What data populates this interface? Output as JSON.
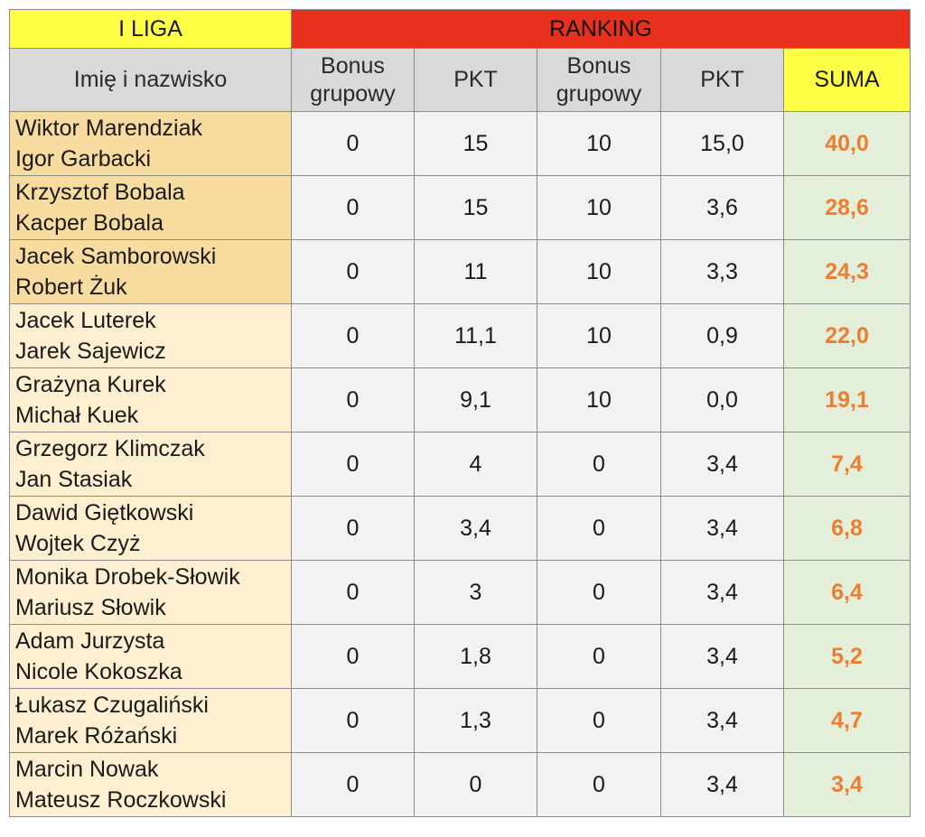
{
  "headers": {
    "league": "I LIGA",
    "ranking": "RANKING",
    "name_col": "Imię i nazwisko",
    "bonus_1_line1": "Bonus",
    "bonus_1_line2": "grupowy",
    "pkt_1": "PKT",
    "bonus_2_line1": "Bonus",
    "bonus_2_line2": "grupowy",
    "pkt_2": "PKT",
    "suma": "SUMA"
  },
  "colors": {
    "league_header": "#ffff47",
    "ranking_header": "#e8301f",
    "column_header": "#d9d9d9",
    "top3_name_bg": "#f8dc9f",
    "name_bg": "#fdefd0",
    "sum_bg": "#e4efda",
    "sum_text": "#ed7d31"
  },
  "rows": [
    {
      "player1": "Wiktor Marendziak",
      "player2": "Igor Garbacki",
      "bonus1": "0",
      "pkt1": "15",
      "bonus2": "10",
      "pkt2": "15,0",
      "suma": "40,0"
    },
    {
      "player1": "Krzysztof Bobala",
      "player2": "Kacper Bobala",
      "bonus1": "0",
      "pkt1": "15",
      "bonus2": "10",
      "pkt2": "3,6",
      "suma": "28,6"
    },
    {
      "player1": "Jacek Samborowski",
      "player2": "Robert Żuk",
      "bonus1": "0",
      "pkt1": "11",
      "bonus2": "10",
      "pkt2": "3,3",
      "suma": "24,3"
    },
    {
      "player1": "Jacek Luterek",
      "player2": "Jarek Sajewicz",
      "bonus1": "0",
      "pkt1": "11,1",
      "bonus2": "10",
      "pkt2": "0,9",
      "suma": "22,0"
    },
    {
      "player1": "Grażyna Kurek",
      "player2": "Michał Kuek",
      "bonus1": "0",
      "pkt1": "9,1",
      "bonus2": "10",
      "pkt2": "0,0",
      "suma": "19,1"
    },
    {
      "player1": "Grzegorz Klimczak",
      "player2": "Jan Stasiak",
      "bonus1": "0",
      "pkt1": "4",
      "bonus2": "0",
      "pkt2": "3,4",
      "suma": "7,4"
    },
    {
      "player1": "Dawid Giętkowski",
      "player2": "Wojtek Czyż",
      "bonus1": "0",
      "pkt1": "3,4",
      "bonus2": "0",
      "pkt2": "3,4",
      "suma": "6,8"
    },
    {
      "player1": "Monika Drobek-Słowik",
      "player2": "Mariusz Słowik",
      "bonus1": "0",
      "pkt1": "3",
      "bonus2": "0",
      "pkt2": "3,4",
      "suma": "6,4"
    },
    {
      "player1": "Adam Jurzysta",
      "player2": "Nicole Kokoszka",
      "bonus1": "0",
      "pkt1": "1,8",
      "bonus2": "0",
      "pkt2": "3,4",
      "suma": "5,2"
    },
    {
      "player1": "Łukasz Czugaliński",
      "player2": "Marek Różański",
      "bonus1": "0",
      "pkt1": "1,3",
      "bonus2": "0",
      "pkt2": "3,4",
      "suma": "4,7"
    },
    {
      "player1": "Marcin Nowak",
      "player2": "Mateusz Roczkowski",
      "bonus1": "0",
      "pkt1": "0",
      "bonus2": "0",
      "pkt2": "3,4",
      "suma": "3,4"
    }
  ]
}
